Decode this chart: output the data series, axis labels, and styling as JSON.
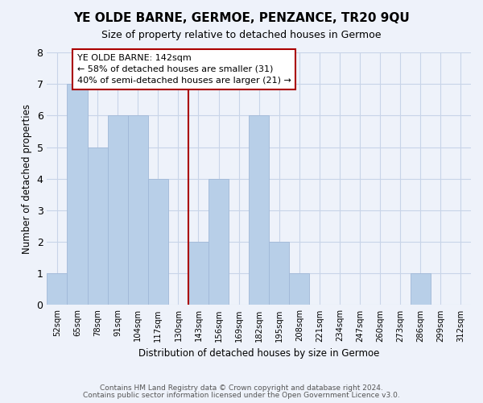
{
  "title": "YE OLDE BARNE, GERMOE, PENZANCE, TR20 9QU",
  "subtitle": "Size of property relative to detached houses in Germoe",
  "xlabel": "Distribution of detached houses by size in Germoe",
  "ylabel": "Number of detached properties",
  "bar_labels": [
    "52sqm",
    "65sqm",
    "78sqm",
    "91sqm",
    "104sqm",
    "117sqm",
    "130sqm",
    "143sqm",
    "156sqm",
    "169sqm",
    "182sqm",
    "195sqm",
    "208sqm",
    "221sqm",
    "234sqm",
    "247sqm",
    "260sqm",
    "273sqm",
    "286sqm",
    "299sqm",
    "312sqm"
  ],
  "bar_values": [
    1,
    7,
    5,
    6,
    6,
    4,
    0,
    2,
    4,
    0,
    6,
    2,
    1,
    0,
    0,
    0,
    0,
    0,
    1,
    0,
    0
  ],
  "bar_color": "#b8cfe8",
  "bar_edge_color": "#a0b8d8",
  "vline_index": 7,
  "annotation_title": "YE OLDE BARNE: 142sqm",
  "annotation_line1": "← 58% of detached houses are smaller (31)",
  "annotation_line2": "40% of semi-detached houses are larger (21) →",
  "annotation_box_color": "#ffffff",
  "annotation_box_edge": "#aa0000",
  "vline_color": "#aa0000",
  "ylim": [
    0,
    8
  ],
  "yticks": [
    0,
    1,
    2,
    3,
    4,
    5,
    6,
    7,
    8
  ],
  "grid_color": "#c8d4e8",
  "bg_color": "#eef2fa",
  "footer1": "Contains HM Land Registry data © Crown copyright and database right 2024.",
  "footer2": "Contains public sector information licensed under the Open Government Licence v3.0."
}
